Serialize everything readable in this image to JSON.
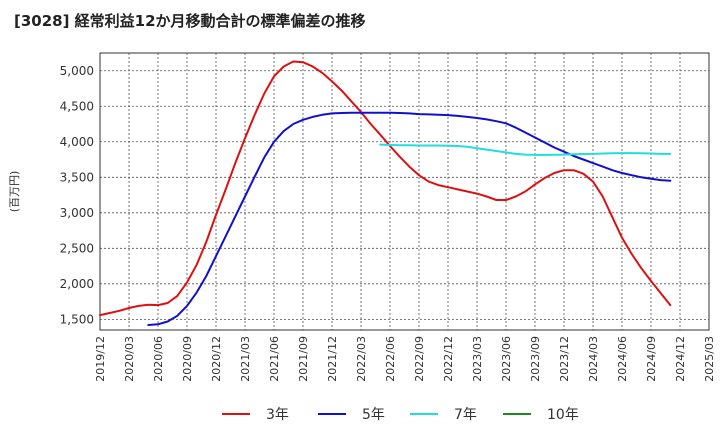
{
  "title": "[3028]  経常利益12か月移動合計の標準偏差の推移",
  "chart_data": {
    "type": "line",
    "title": "[3028]  経常利益12か月移動合計の標準偏差の推移",
    "ylabel": "(百万円)",
    "xlabel": "",
    "ylim": [
      1350,
      5250
    ],
    "yticks": [
      1500,
      2000,
      2500,
      3000,
      3500,
      4000,
      4500,
      5000
    ],
    "ytick_labels": [
      "1,500",
      "2,000",
      "2,500",
      "3,000",
      "3,500",
      "4,000",
      "4,500",
      "5,000"
    ],
    "xticks": [
      "2019/12",
      "2020/03",
      "2020/06",
      "2020/09",
      "2020/12",
      "2021/03",
      "2021/06",
      "2021/09",
      "2021/12",
      "2022/03",
      "2022/06",
      "2022/09",
      "2022/12",
      "2023/03",
      "2023/06",
      "2023/09",
      "2023/12",
      "2024/03",
      "2024/06",
      "2024/09",
      "2024/12",
      "2025/03"
    ],
    "grid": true,
    "legend_position": "bottom",
    "series": [
      {
        "name": "3年",
        "color": "#dd1111",
        "points": [
          [
            "2019/12",
            1560
          ],
          [
            "2020/01",
            1590
          ],
          [
            "2020/02",
            1620
          ],
          [
            "2020/03",
            1660
          ],
          [
            "2020/04",
            1690
          ],
          [
            "2020/05",
            1705
          ],
          [
            "2020/06",
            1700
          ],
          [
            "2020/07",
            1730
          ],
          [
            "2020/08",
            1830
          ],
          [
            "2020/09",
            2020
          ],
          [
            "2020/10",
            2270
          ],
          [
            "2020/11",
            2590
          ],
          [
            "2020/12",
            2970
          ],
          [
            "2021/01",
            3330
          ],
          [
            "2021/02",
            3700
          ],
          [
            "2021/03",
            4050
          ],
          [
            "2021/04",
            4380
          ],
          [
            "2021/05",
            4680
          ],
          [
            "2021/06",
            4920
          ],
          [
            "2021/07",
            5060
          ],
          [
            "2021/08",
            5130
          ],
          [
            "2021/09",
            5120
          ],
          [
            "2021/10",
            5060
          ],
          [
            "2021/11",
            4970
          ],
          [
            "2021/12",
            4850
          ],
          [
            "2022/01",
            4720
          ],
          [
            "2022/02",
            4570
          ],
          [
            "2022/03",
            4420
          ],
          [
            "2022/04",
            4250
          ],
          [
            "2022/05",
            4100
          ],
          [
            "2022/06",
            3940
          ],
          [
            "2022/07",
            3790
          ],
          [
            "2022/08",
            3650
          ],
          [
            "2022/09",
            3530
          ],
          [
            "2022/10",
            3440
          ],
          [
            "2022/11",
            3390
          ],
          [
            "2022/12",
            3360
          ],
          [
            "2023/01",
            3330
          ],
          [
            "2023/02",
            3300
          ],
          [
            "2023/03",
            3270
          ],
          [
            "2023/04",
            3230
          ],
          [
            "2023/05",
            3180
          ],
          [
            "2023/06",
            3180
          ],
          [
            "2023/07",
            3230
          ],
          [
            "2023/08",
            3300
          ],
          [
            "2023/09",
            3400
          ],
          [
            "2023/10",
            3490
          ],
          [
            "2023/11",
            3560
          ],
          [
            "2023/12",
            3600
          ],
          [
            "2024/01",
            3600
          ],
          [
            "2024/02",
            3550
          ],
          [
            "2024/03",
            3440
          ],
          [
            "2024/04",
            3230
          ],
          [
            "2024/05",
            2940
          ],
          [
            "2024/06",
            2650
          ],
          [
            "2024/07",
            2420
          ],
          [
            "2024/08",
            2220
          ],
          [
            "2024/09",
            2040
          ],
          [
            "2024/10",
            1870
          ],
          [
            "2024/11",
            1700
          ]
        ]
      },
      {
        "name": "5年",
        "color": "#1111cc",
        "points": [
          [
            "2020/05",
            1420
          ],
          [
            "2020/06",
            1430
          ],
          [
            "2020/07",
            1470
          ],
          [
            "2020/08",
            1550
          ],
          [
            "2020/09",
            1690
          ],
          [
            "2020/10",
            1880
          ],
          [
            "2020/11",
            2110
          ],
          [
            "2020/12",
            2390
          ],
          [
            "2021/01",
            2670
          ],
          [
            "2021/02",
            2950
          ],
          [
            "2021/03",
            3230
          ],
          [
            "2021/04",
            3510
          ],
          [
            "2021/05",
            3780
          ],
          [
            "2021/06",
            4000
          ],
          [
            "2021/07",
            4150
          ],
          [
            "2021/08",
            4250
          ],
          [
            "2021/09",
            4310
          ],
          [
            "2021/10",
            4350
          ],
          [
            "2021/11",
            4380
          ],
          [
            "2021/12",
            4400
          ],
          [
            "2022/01",
            4405
          ],
          [
            "2022/02",
            4408
          ],
          [
            "2022/03",
            4410
          ],
          [
            "2022/04",
            4410
          ],
          [
            "2022/05",
            4410
          ],
          [
            "2022/06",
            4410
          ],
          [
            "2022/07",
            4405
          ],
          [
            "2022/08",
            4400
          ],
          [
            "2022/09",
            4390
          ],
          [
            "2022/10",
            4385
          ],
          [
            "2022/11",
            4380
          ],
          [
            "2022/12",
            4375
          ],
          [
            "2023/01",
            4365
          ],
          [
            "2023/02",
            4350
          ],
          [
            "2023/03",
            4335
          ],
          [
            "2023/04",
            4315
          ],
          [
            "2023/05",
            4290
          ],
          [
            "2023/06",
            4260
          ],
          [
            "2023/07",
            4200
          ],
          [
            "2023/08",
            4130
          ],
          [
            "2023/09",
            4060
          ],
          [
            "2023/10",
            3990
          ],
          [
            "2023/11",
            3920
          ],
          [
            "2023/12",
            3860
          ],
          [
            "2024/01",
            3800
          ],
          [
            "2024/02",
            3750
          ],
          [
            "2024/03",
            3700
          ],
          [
            "2024/04",
            3650
          ],
          [
            "2024/05",
            3600
          ],
          [
            "2024/06",
            3560
          ],
          [
            "2024/07",
            3530
          ],
          [
            "2024/08",
            3500
          ],
          [
            "2024/09",
            3480
          ],
          [
            "2024/10",
            3460
          ],
          [
            "2024/11",
            3450
          ]
        ]
      },
      {
        "name": "7年",
        "color": "#22dddd",
        "points": [
          [
            "2022/05",
            3960
          ],
          [
            "2022/06",
            3955
          ],
          [
            "2022/07",
            3950
          ],
          [
            "2022/08",
            3950
          ],
          [
            "2022/09",
            3948
          ],
          [
            "2022/10",
            3948
          ],
          [
            "2022/11",
            3948
          ],
          [
            "2022/12",
            3945
          ],
          [
            "2023/01",
            3940
          ],
          [
            "2023/02",
            3930
          ],
          [
            "2023/03",
            3910
          ],
          [
            "2023/04",
            3890
          ],
          [
            "2023/05",
            3870
          ],
          [
            "2023/06",
            3850
          ],
          [
            "2023/07",
            3830
          ],
          [
            "2023/08",
            3820
          ],
          [
            "2023/09",
            3815
          ],
          [
            "2023/10",
            3815
          ],
          [
            "2023/11",
            3818
          ],
          [
            "2023/12",
            3820
          ],
          [
            "2024/01",
            3825
          ],
          [
            "2024/02",
            3828
          ],
          [
            "2024/03",
            3830
          ],
          [
            "2024/04",
            3835
          ],
          [
            "2024/05",
            3838
          ],
          [
            "2024/06",
            3840
          ],
          [
            "2024/07",
            3840
          ],
          [
            "2024/08",
            3838
          ],
          [
            "2024/09",
            3835
          ],
          [
            "2024/10",
            3830
          ],
          [
            "2024/11",
            3830
          ]
        ]
      },
      {
        "name": "10年",
        "color": "#228822",
        "points": []
      }
    ]
  }
}
